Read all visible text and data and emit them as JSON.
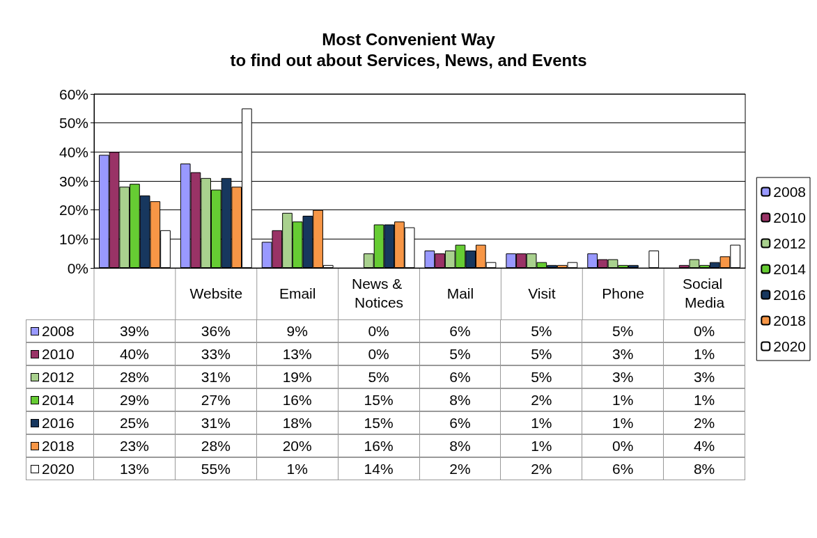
{
  "chart_data": {
    "type": "bar",
    "title": "Most Convenient Way\nto find out about Services, News, and Events",
    "categories": [
      null,
      "Website",
      "Email",
      "News & Notices",
      "Mail",
      "Visit",
      "Phone",
      "Social Media"
    ],
    "series": [
      {
        "name": "2008",
        "color": "#9999ff",
        "values": [
          39,
          36,
          9,
          0,
          6,
          5,
          5,
          0
        ],
        "value_labels": [
          "39%",
          "36%",
          "9%",
          "0%",
          "6%",
          "5%",
          "5%",
          "0%"
        ]
      },
      {
        "name": "2010",
        "color": "#993366",
        "values": [
          40,
          33,
          13,
          0,
          5,
          5,
          3,
          1
        ],
        "value_labels": [
          "40%",
          "33%",
          "13%",
          "0%",
          "5%",
          "5%",
          "3%",
          "1%"
        ]
      },
      {
        "name": "2012",
        "color": "#a9d18e",
        "values": [
          28,
          31,
          19,
          5,
          6,
          5,
          3,
          3
        ],
        "value_labels": [
          "28%",
          "31%",
          "19%",
          "5%",
          "6%",
          "5%",
          "3%",
          "3%"
        ]
      },
      {
        "name": "2014",
        "color": "#66cc33",
        "values": [
          29,
          27,
          16,
          15,
          8,
          2,
          1,
          1
        ],
        "value_labels": [
          "29%",
          "27%",
          "16%",
          "15%",
          "8%",
          "2%",
          "1%",
          "1%"
        ]
      },
      {
        "name": "2016",
        "color": "#17375e",
        "values": [
          25,
          31,
          18,
          15,
          6,
          1,
          1,
          2
        ],
        "value_labels": [
          "25%",
          "31%",
          "18%",
          "15%",
          "6%",
          "1%",
          "1%",
          "2%"
        ]
      },
      {
        "name": "2018",
        "color": "#f79646",
        "values": [
          23,
          28,
          20,
          16,
          8,
          1,
          0,
          4
        ],
        "value_labels": [
          "23%",
          "28%",
          "20%",
          "16%",
          "8%",
          "1%",
          "0%",
          "4%"
        ]
      },
      {
        "name": "2020",
        "color": "#ffffff",
        "values": [
          13,
          55,
          1,
          14,
          2,
          2,
          6,
          8
        ],
        "value_labels": [
          "13%",
          "55%",
          "1%",
          "14%",
          "2%",
          "2%",
          "6%",
          "8%"
        ]
      }
    ],
    "ylim": [
      0,
      60
    ],
    "yticks": [
      {
        "value": 0,
        "label": "0%"
      },
      {
        "value": 10,
        "label": "10%"
      },
      {
        "value": 20,
        "label": "20%"
      },
      {
        "value": 30,
        "label": "30%"
      },
      {
        "value": 40,
        "label": "40%"
      },
      {
        "value": 50,
        "label": "50%"
      },
      {
        "value": 60,
        "label": "60%"
      }
    ],
    "grid": "y",
    "legend": "right"
  }
}
